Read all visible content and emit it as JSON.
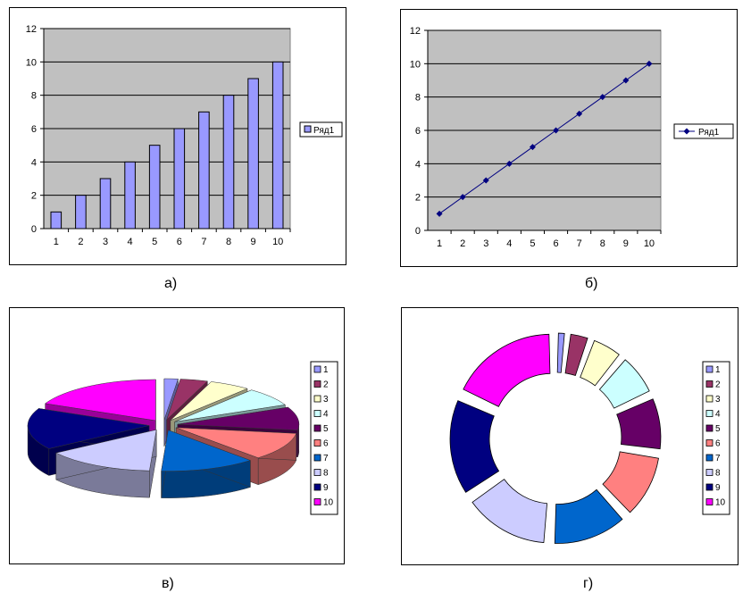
{
  "captions": {
    "a": "а)",
    "b": "б)",
    "c": "в)",
    "d": "г)"
  },
  "colors": {
    "plot_bg": "#C0C0C0",
    "bar": "#9999FF",
    "line": "#000080",
    "slices": [
      "#9999FF",
      "#993366",
      "#FFFFCC",
      "#CCFFFF",
      "#660066",
      "#FF8080",
      "#0066CC",
      "#CCCCFF",
      "#000080",
      "#FF00FF"
    ]
  },
  "chart_data": [
    {
      "type": "bar",
      "categories": [
        "1",
        "2",
        "3",
        "4",
        "5",
        "6",
        "7",
        "8",
        "9",
        "10"
      ],
      "series": [
        {
          "name": "Ряд1",
          "values": [
            1,
            2,
            3,
            4,
            5,
            6,
            7,
            8,
            9,
            10
          ]
        }
      ],
      "ylim": [
        0,
        12
      ],
      "yticks": [
        "0",
        "2",
        "4",
        "6",
        "8",
        "10",
        "12"
      ],
      "grid": true,
      "legend": "right"
    },
    {
      "type": "line",
      "x": [
        "1",
        "2",
        "3",
        "4",
        "5",
        "6",
        "7",
        "8",
        "9",
        "10"
      ],
      "series": [
        {
          "name": "Ряд1",
          "values": [
            1,
            2,
            3,
            4,
            5,
            6,
            7,
            8,
            9,
            10
          ]
        }
      ],
      "ylim": [
        0,
        12
      ],
      "yticks": [
        "0",
        "2",
        "4",
        "6",
        "8",
        "10",
        "12"
      ],
      "grid": true,
      "legend": "right"
    },
    {
      "type": "pie",
      "style": "3d-exploded",
      "labels": [
        "1",
        "2",
        "3",
        "4",
        "5",
        "6",
        "7",
        "8",
        "9",
        "10"
      ],
      "values": [
        1,
        2,
        3,
        4,
        5,
        6,
        7,
        8,
        9,
        10
      ],
      "legend": "right"
    },
    {
      "type": "pie",
      "style": "doughnut-exploded",
      "labels": [
        "1",
        "2",
        "3",
        "4",
        "5",
        "6",
        "7",
        "8",
        "9",
        "10"
      ],
      "values": [
        1,
        2,
        3,
        4,
        5,
        6,
        7,
        8,
        9,
        10
      ],
      "legend": "right"
    }
  ]
}
